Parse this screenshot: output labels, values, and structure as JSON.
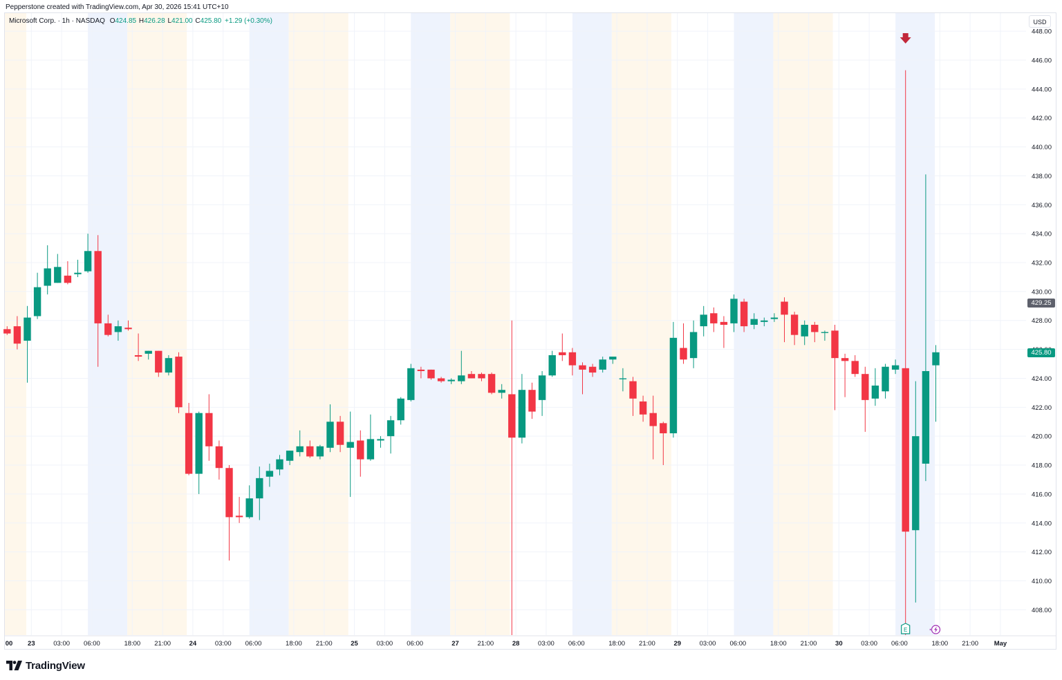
{
  "credit_text": "Pepperstone created with TradingView.com, Apr 30, 2026 15:41 UTC+10",
  "legend": {
    "symbol": "Microsoft Corp. · 1h · NASDAQ",
    "o_label": "O",
    "o_value": "424.85",
    "h_label": "H",
    "h_value": "426.28",
    "l_label": "L",
    "l_value": "421.00",
    "c_label": "C",
    "c_value": "425.80",
    "change": "+1.29 (+0.30%)"
  },
  "currency": "USD",
  "price_tags": {
    "previous_close": "429.25",
    "last": "425.80"
  },
  "brand": {
    "text": "TradingView",
    "icon": "tradingview-logo-icon"
  },
  "markers": [
    {
      "icon": "down-arrow-icon",
      "color": "#c2283a"
    },
    {
      "icon": "earnings-icon",
      "color": "#089981",
      "letter": "E"
    },
    {
      "icon": "lightning-icon",
      "color": "#9c27b0"
    }
  ],
  "colors": {
    "up": "#089981",
    "down": "#f23645",
    "premarket": "#eef3fd",
    "postmarket": "#fef7eb",
    "grid": "#f0f3fa"
  },
  "chart_data": {
    "type": "candlestick",
    "interval": "1h",
    "ylim": [
      406,
      449
    ],
    "y_ticks": [
      408,
      410,
      412,
      414,
      416,
      418,
      420,
      422,
      424,
      426,
      428,
      430,
      432,
      434,
      436,
      438,
      440,
      442,
      444,
      446,
      448
    ],
    "y_tick_labels": [
      "408.00",
      "410.00",
      "412.00",
      "414.00",
      "416.00",
      "418.00",
      "420.00",
      "422.00",
      "424.00",
      "426.00",
      "428.00",
      "430.00",
      "432.00",
      "434.00",
      "436.00",
      "438.00",
      "440.00",
      "442.00",
      "444.00",
      "446.00",
      "448.00"
    ],
    "x_ticks": [
      {
        "label": "00",
        "i": -0.6
      },
      {
        "label": "23",
        "i": 2.4
      },
      {
        "label": "03:00",
        "i": 5.4
      },
      {
        "label": "06:00",
        "i": 8.4
      },
      {
        "label": "18:00",
        "i": 12.4
      },
      {
        "label": "21:00",
        "i": 15.4
      },
      {
        "label": "24",
        "i": 18.4
      },
      {
        "label": "03:00",
        "i": 21.4
      },
      {
        "label": "06:00",
        "i": 24.4
      },
      {
        "label": "18:00",
        "i": 28.4
      },
      {
        "label": "21:00",
        "i": 31.4
      },
      {
        "label": "25",
        "i": 34.4
      },
      {
        "label": "03:00",
        "i": 37.4
      },
      {
        "label": "06:00",
        "i": 40.4
      },
      {
        "label": "27",
        "i": 44.4
      },
      {
        "label": "21:00",
        "i": 47.4
      },
      {
        "label": "28",
        "i": 50.4
      },
      {
        "label": "03:00",
        "i": 53.4
      },
      {
        "label": "06:00",
        "i": 56.4
      },
      {
        "label": "18:00",
        "i": 60.4
      },
      {
        "label": "21:00",
        "i": 63.4
      },
      {
        "label": "29",
        "i": 66.4
      },
      {
        "label": "03:00",
        "i": 69.4
      },
      {
        "label": "06:00",
        "i": 72.4
      },
      {
        "label": "18:00",
        "i": 76.4
      },
      {
        "label": "21:00",
        "i": 79.4
      },
      {
        "label": "30",
        "i": 82.4
      },
      {
        "label": "03:00",
        "i": 85.4
      },
      {
        "label": "06:00",
        "i": 88.4
      },
      {
        "label": "18:00",
        "i": 92.4
      },
      {
        "label": "21:00",
        "i": 95.4
      },
      {
        "label": "May",
        "i": 98.4
      }
    ],
    "sessions": [
      {
        "type": "post",
        "from": -0.4,
        "to": 1.9
      },
      {
        "type": "pre",
        "from": 8.0,
        "to": 11.9
      },
      {
        "type": "post",
        "from": 11.9,
        "to": 17.8
      },
      {
        "type": "pre",
        "from": 24.0,
        "to": 27.9
      },
      {
        "type": "post",
        "from": 27.9,
        "to": 33.8
      },
      {
        "type": "pre",
        "from": 40.0,
        "to": 43.9
      },
      {
        "type": "post",
        "from": 43.9,
        "to": 49.8
      },
      {
        "type": "pre",
        "from": 56.0,
        "to": 59.9
      },
      {
        "type": "post",
        "from": 59.9,
        "to": 65.8
      },
      {
        "type": "pre",
        "from": 72.0,
        "to": 75.9
      },
      {
        "type": "post",
        "from": 75.9,
        "to": 81.8
      },
      {
        "type": "pre",
        "from": 88.0,
        "to": 91.9
      }
    ],
    "candles": [
      {
        "o": 427.4,
        "h": 427.6,
        "l": 427.0,
        "c": 427.1
      },
      {
        "o": 427.6,
        "h": 428.3,
        "l": 426.0,
        "c": 426.4
      },
      {
        "o": 426.6,
        "h": 429.0,
        "l": 423.7,
        "c": 428.2
      },
      {
        "o": 428.3,
        "h": 431.3,
        "l": 428.1,
        "c": 430.3
      },
      {
        "o": 430.4,
        "h": 433.2,
        "l": 429.8,
        "c": 431.6
      },
      {
        "o": 430.6,
        "h": 432.6,
        "l": 430.6,
        "c": 431.7
      },
      {
        "o": 431.1,
        "h": 432.1,
        "l": 430.5,
        "c": 430.6
      },
      {
        "o": 431.2,
        "h": 432.2,
        "l": 431.0,
        "c": 431.3
      },
      {
        "o": 431.4,
        "h": 434.0,
        "l": 431.3,
        "c": 432.8
      },
      {
        "o": 432.8,
        "h": 433.9,
        "l": 424.8,
        "c": 427.8
      },
      {
        "o": 427.8,
        "h": 428.4,
        "l": 426.9,
        "c": 427.0
      },
      {
        "o": 427.2,
        "h": 428.0,
        "l": 426.6,
        "c": 427.6
      },
      {
        "o": 427.5,
        "h": 428.0,
        "l": 427.3,
        "c": 427.4
      },
      {
        "o": 425.6,
        "h": 427.1,
        "l": 425.2,
        "c": 425.5
      },
      {
        "o": 425.7,
        "h": 425.9,
        "l": 425.3,
        "c": 425.9
      },
      {
        "o": 425.9,
        "h": 425.9,
        "l": 424.1,
        "c": 424.4
      },
      {
        "o": 424.4,
        "h": 425.6,
        "l": 424.2,
        "c": 425.4
      },
      {
        "o": 425.5,
        "h": 425.8,
        "l": 421.6,
        "c": 422.0
      },
      {
        "o": 421.6,
        "h": 422.3,
        "l": 417.3,
        "c": 417.4
      },
      {
        "o": 417.4,
        "h": 421.7,
        "l": 416.0,
        "c": 421.6
      },
      {
        "o": 421.6,
        "h": 422.9,
        "l": 418.3,
        "c": 419.3
      },
      {
        "o": 419.3,
        "h": 419.7,
        "l": 417.0,
        "c": 417.8
      },
      {
        "o": 417.8,
        "h": 418.0,
        "l": 411.4,
        "c": 414.4
      },
      {
        "o": 414.5,
        "h": 415.8,
        "l": 414.0,
        "c": 414.4
      },
      {
        "o": 414.4,
        "h": 416.6,
        "l": 414.3,
        "c": 415.7
      },
      {
        "o": 415.7,
        "h": 417.9,
        "l": 414.2,
        "c": 417.1
      },
      {
        "o": 417.2,
        "h": 418.1,
        "l": 416.5,
        "c": 417.6
      },
      {
        "o": 417.7,
        "h": 418.7,
        "l": 417.3,
        "c": 418.4
      },
      {
        "o": 418.3,
        "h": 419.0,
        "l": 418.0,
        "c": 419.0
      },
      {
        "o": 418.9,
        "h": 420.4,
        "l": 418.6,
        "c": 419.3
      },
      {
        "o": 419.3,
        "h": 419.7,
        "l": 418.5,
        "c": 418.6
      },
      {
        "o": 418.6,
        "h": 419.4,
        "l": 418.4,
        "c": 419.3
      },
      {
        "o": 419.2,
        "h": 422.2,
        "l": 418.9,
        "c": 421.0
      },
      {
        "o": 421.0,
        "h": 421.4,
        "l": 418.9,
        "c": 419.4
      },
      {
        "o": 419.2,
        "h": 421.7,
        "l": 415.8,
        "c": 419.6
      },
      {
        "o": 419.7,
        "h": 420.4,
        "l": 417.2,
        "c": 418.4
      },
      {
        "o": 418.4,
        "h": 421.5,
        "l": 418.3,
        "c": 419.8
      },
      {
        "o": 419.7,
        "h": 420.0,
        "l": 419.2,
        "c": 419.8
      },
      {
        "o": 420.0,
        "h": 421.4,
        "l": 418.8,
        "c": 421.1
      },
      {
        "o": 421.1,
        "h": 422.7,
        "l": 420.8,
        "c": 422.6
      },
      {
        "o": 422.5,
        "h": 425.0,
        "l": 422.4,
        "c": 424.7
      },
      {
        "o": 424.6,
        "h": 424.8,
        "l": 424.0,
        "c": 424.5
      },
      {
        "o": 424.6,
        "h": 424.6,
        "l": 423.9,
        "c": 424.0
      },
      {
        "o": 424.0,
        "h": 424.1,
        "l": 423.7,
        "c": 423.8
      },
      {
        "o": 423.8,
        "h": 424.0,
        "l": 423.6,
        "c": 423.9
      },
      {
        "o": 423.8,
        "h": 425.9,
        "l": 423.6,
        "c": 424.2
      },
      {
        "o": 424.3,
        "h": 424.5,
        "l": 424.0,
        "c": 424.0
      },
      {
        "o": 424.3,
        "h": 424.4,
        "l": 423.8,
        "c": 424.0
      },
      {
        "o": 424.3,
        "h": 424.4,
        "l": 422.9,
        "c": 423.0
      },
      {
        "o": 423.0,
        "h": 423.6,
        "l": 422.6,
        "c": 423.2
      },
      {
        "o": 422.9,
        "h": 428.0,
        "l": 406.0,
        "c": 419.9
      },
      {
        "o": 419.9,
        "h": 424.3,
        "l": 419.5,
        "c": 423.2
      },
      {
        "o": 423.2,
        "h": 423.7,
        "l": 421.2,
        "c": 421.7
      },
      {
        "o": 422.5,
        "h": 424.5,
        "l": 421.4,
        "c": 424.2
      },
      {
        "o": 424.2,
        "h": 425.9,
        "l": 424.1,
        "c": 425.6
      },
      {
        "o": 425.8,
        "h": 427.1,
        "l": 425.2,
        "c": 425.6
      },
      {
        "o": 425.8,
        "h": 426.1,
        "l": 424.2,
        "c": 424.9
      },
      {
        "o": 424.9,
        "h": 425.1,
        "l": 422.9,
        "c": 424.6
      },
      {
        "o": 424.8,
        "h": 425.0,
        "l": 424.1,
        "c": 424.4
      },
      {
        "o": 424.6,
        "h": 425.5,
        "l": 424.4,
        "c": 425.3
      },
      {
        "o": 425.3,
        "h": 425.5,
        "l": 425.0,
        "c": 425.5
      },
      {
        "o": 424.0,
        "h": 424.7,
        "l": 423.1,
        "c": 424.0
      },
      {
        "o": 423.8,
        "h": 424.1,
        "l": 421.4,
        "c": 422.6
      },
      {
        "o": 422.4,
        "h": 422.8,
        "l": 421.0,
        "c": 421.5
      },
      {
        "o": 421.6,
        "h": 422.8,
        "l": 418.4,
        "c": 420.7
      },
      {
        "o": 420.9,
        "h": 421.0,
        "l": 418.0,
        "c": 420.2
      },
      {
        "o": 420.2,
        "h": 427.9,
        "l": 419.9,
        "c": 426.8
      },
      {
        "o": 426.1,
        "h": 427.8,
        "l": 425.0,
        "c": 425.3
      },
      {
        "o": 425.4,
        "h": 428.0,
        "l": 424.7,
        "c": 427.2
      },
      {
        "o": 427.6,
        "h": 429.0,
        "l": 426.9,
        "c": 428.4
      },
      {
        "o": 428.5,
        "h": 428.9,
        "l": 427.2,
        "c": 427.8
      },
      {
        "o": 427.9,
        "h": 428.3,
        "l": 426.1,
        "c": 427.7
      },
      {
        "o": 427.8,
        "h": 429.8,
        "l": 427.2,
        "c": 429.5
      },
      {
        "o": 429.3,
        "h": 429.5,
        "l": 427.2,
        "c": 427.6
      },
      {
        "o": 427.7,
        "h": 428.5,
        "l": 427.4,
        "c": 428.1
      },
      {
        "o": 427.9,
        "h": 428.2,
        "l": 427.6,
        "c": 428.0
      },
      {
        "o": 428.1,
        "h": 428.5,
        "l": 427.9,
        "c": 428.2
      },
      {
        "o": 429.3,
        "h": 429.6,
        "l": 426.5,
        "c": 428.4
      },
      {
        "o": 428.4,
        "h": 428.6,
        "l": 426.3,
        "c": 427.0
      },
      {
        "o": 426.9,
        "h": 428.0,
        "l": 426.3,
        "c": 427.7
      },
      {
        "o": 427.7,
        "h": 427.9,
        "l": 426.5,
        "c": 427.2
      },
      {
        "o": 427.2,
        "h": 427.3,
        "l": 426.6,
        "c": 427.2
      },
      {
        "o": 427.3,
        "h": 427.7,
        "l": 421.8,
        "c": 425.4
      },
      {
        "o": 425.4,
        "h": 425.7,
        "l": 422.7,
        "c": 425.2
      },
      {
        "o": 425.2,
        "h": 425.6,
        "l": 424.1,
        "c": 424.3
      },
      {
        "o": 424.3,
        "h": 424.8,
        "l": 420.3,
        "c": 422.5
      },
      {
        "o": 422.6,
        "h": 424.7,
        "l": 422.1,
        "c": 423.5
      },
      {
        "o": 423.1,
        "h": 425.0,
        "l": 422.6,
        "c": 424.8
      },
      {
        "o": 424.6,
        "h": 425.3,
        "l": 424.3,
        "c": 424.9
      },
      {
        "o": 424.7,
        "h": 445.3,
        "l": 406.1,
        "c": 413.4
      },
      {
        "o": 413.5,
        "h": 423.8,
        "l": 408.5,
        "c": 420.0
      },
      {
        "o": 418.1,
        "h": 438.1,
        "l": 416.9,
        "c": 424.5
      },
      {
        "o": 424.9,
        "h": 426.3,
        "l": 421.0,
        "c": 425.8
      }
    ]
  }
}
